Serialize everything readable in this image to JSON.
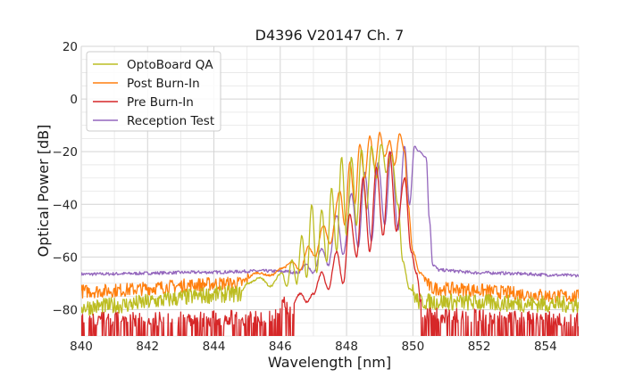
{
  "chart_data": {
    "type": "line",
    "title": "D4396 V20147 Ch. 7",
    "xlabel": "Wavelength [nm]",
    "ylabel": "Optical Power [dB]",
    "xlim": [
      840,
      855
    ],
    "ylim": [
      -90,
      20
    ],
    "xticks": [
      840,
      842,
      844,
      846,
      848,
      850,
      852,
      854
    ],
    "yticks": [
      20,
      0,
      -20,
      -40,
      -60,
      -80
    ],
    "ytick_labels": [
      "20",
      "0",
      "−20",
      "−40",
      "−60",
      "−80"
    ],
    "grid": true,
    "legend_position": "top-left",
    "series": [
      {
        "name": "OptoBoard QA",
        "color": "#bcbd22",
        "noise_floor": -79,
        "noise_amp": 3.2,
        "dropouts": false,
        "peaks": [
          [
            846.05,
            -66
          ],
          [
            846.35,
            -61
          ],
          [
            846.65,
            -52
          ],
          [
            846.95,
            -40
          ],
          [
            847.25,
            -42
          ],
          [
            847.55,
            -34
          ],
          [
            847.85,
            -22
          ],
          [
            848.15,
            -22
          ],
          [
            848.45,
            -19
          ],
          [
            848.75,
            -18
          ],
          [
            849.05,
            -17
          ],
          [
            849.35,
            -21
          ]
        ],
        "points": [
          [
            840,
            -79
          ],
          [
            844.8,
            -74
          ],
          [
            845,
            -70
          ],
          [
            845.4,
            -68
          ],
          [
            845.7,
            -71
          ],
          [
            846.05,
            -66
          ],
          [
            846.2,
            -71
          ],
          [
            846.35,
            -61
          ],
          [
            846.5,
            -70
          ],
          [
            846.65,
            -52
          ],
          [
            846.8,
            -68
          ],
          [
            846.95,
            -40
          ],
          [
            847.1,
            -66
          ],
          [
            847.25,
            -42
          ],
          [
            847.4,
            -62
          ],
          [
            847.55,
            -34
          ],
          [
            847.7,
            -58
          ],
          [
            847.85,
            -22
          ],
          [
            848,
            -52
          ],
          [
            848.15,
            -22
          ],
          [
            848.3,
            -48
          ],
          [
            848.45,
            -19
          ],
          [
            848.6,
            -42
          ],
          [
            848.75,
            -18
          ],
          [
            848.9,
            -30
          ],
          [
            849.05,
            -17
          ],
          [
            849.2,
            -28
          ],
          [
            849.35,
            -21
          ],
          [
            849.55,
            -40
          ],
          [
            849.7,
            -62
          ],
          [
            849.9,
            -72
          ],
          [
            850.2,
            -77
          ],
          [
            855,
            -78
          ]
        ]
      },
      {
        "name": "Post Burn-In",
        "color": "#ff7f0e",
        "noise_floor": -74,
        "noise_amp": 2.6,
        "dropouts": false,
        "points": [
          [
            840,
            -73
          ],
          [
            844.8,
            -70
          ],
          [
            845.3,
            -66
          ],
          [
            845.7,
            -67
          ],
          [
            846.1,
            -64
          ],
          [
            846.35,
            -62
          ],
          [
            846.6,
            -65
          ],
          [
            846.85,
            -56
          ],
          [
            847.05,
            -60
          ],
          [
            847.3,
            -48
          ],
          [
            847.5,
            -55
          ],
          [
            847.8,
            -35
          ],
          [
            847.95,
            -48
          ],
          [
            848.1,
            -24
          ],
          [
            848.25,
            -40
          ],
          [
            848.4,
            -17
          ],
          [
            848.55,
            -30
          ],
          [
            848.7,
            -14
          ],
          [
            848.85,
            -26
          ],
          [
            849,
            -13
          ],
          [
            849.15,
            -22
          ],
          [
            849.3,
            -16
          ],
          [
            849.45,
            -25
          ],
          [
            849.6,
            -13
          ],
          [
            849.75,
            -20
          ],
          [
            849.85,
            -40
          ],
          [
            850,
            -58
          ],
          [
            850.2,
            -66
          ],
          [
            850.6,
            -72
          ],
          [
            855,
            -75
          ]
        ]
      },
      {
        "name": "Pre Burn-In",
        "color": "#d62728",
        "noise_floor": -84,
        "noise_amp": 3,
        "dropouts": true,
        "points": [
          [
            840,
            -84
          ],
          [
            845.9,
            -83
          ],
          [
            846.1,
            -78
          ],
          [
            846.3,
            -80
          ],
          [
            846.6,
            -74
          ],
          [
            846.8,
            -77
          ],
          [
            847.0,
            -74
          ],
          [
            847.25,
            -66
          ],
          [
            847.45,
            -72
          ],
          [
            847.7,
            -58
          ],
          [
            847.9,
            -70
          ],
          [
            848.1,
            -44
          ],
          [
            848.3,
            -60
          ],
          [
            848.5,
            -30
          ],
          [
            848.7,
            -58
          ],
          [
            848.9,
            -26
          ],
          [
            849.1,
            -52
          ],
          [
            849.3,
            -20
          ],
          [
            849.5,
            -50
          ],
          [
            849.75,
            -30
          ],
          [
            849.95,
            -58
          ],
          [
            850.1,
            -66
          ],
          [
            850.3,
            -82
          ],
          [
            855,
            -84
          ]
        ]
      },
      {
        "name": "Reception Test",
        "color": "#9467bd",
        "noise_floor": -66,
        "noise_amp": 0.6,
        "dropouts": false,
        "points": [
          [
            840,
            -66.5
          ],
          [
            844,
            -65.8
          ],
          [
            845.5,
            -65.3
          ],
          [
            846.2,
            -65.5
          ],
          [
            846.5,
            -66
          ],
          [
            846.8,
            -63
          ],
          [
            847.0,
            -66
          ],
          [
            847.25,
            -57
          ],
          [
            847.45,
            -63
          ],
          [
            847.7,
            -44
          ],
          [
            847.9,
            -59
          ],
          [
            848.15,
            -36
          ],
          [
            848.35,
            -56
          ],
          [
            848.55,
            -28
          ],
          [
            848.75,
            -54
          ],
          [
            848.95,
            -24
          ],
          [
            849.15,
            -48
          ],
          [
            849.35,
            -20
          ],
          [
            849.55,
            -50
          ],
          [
            849.75,
            -18
          ],
          [
            849.9,
            -40
          ],
          [
            850.05,
            -18
          ],
          [
            850.2,
            -20
          ],
          [
            850.4,
            -22
          ],
          [
            850.5,
            -46
          ],
          [
            850.6,
            -63
          ],
          [
            850.8,
            -65
          ],
          [
            852,
            -66
          ],
          [
            855,
            -67
          ]
        ]
      }
    ]
  }
}
